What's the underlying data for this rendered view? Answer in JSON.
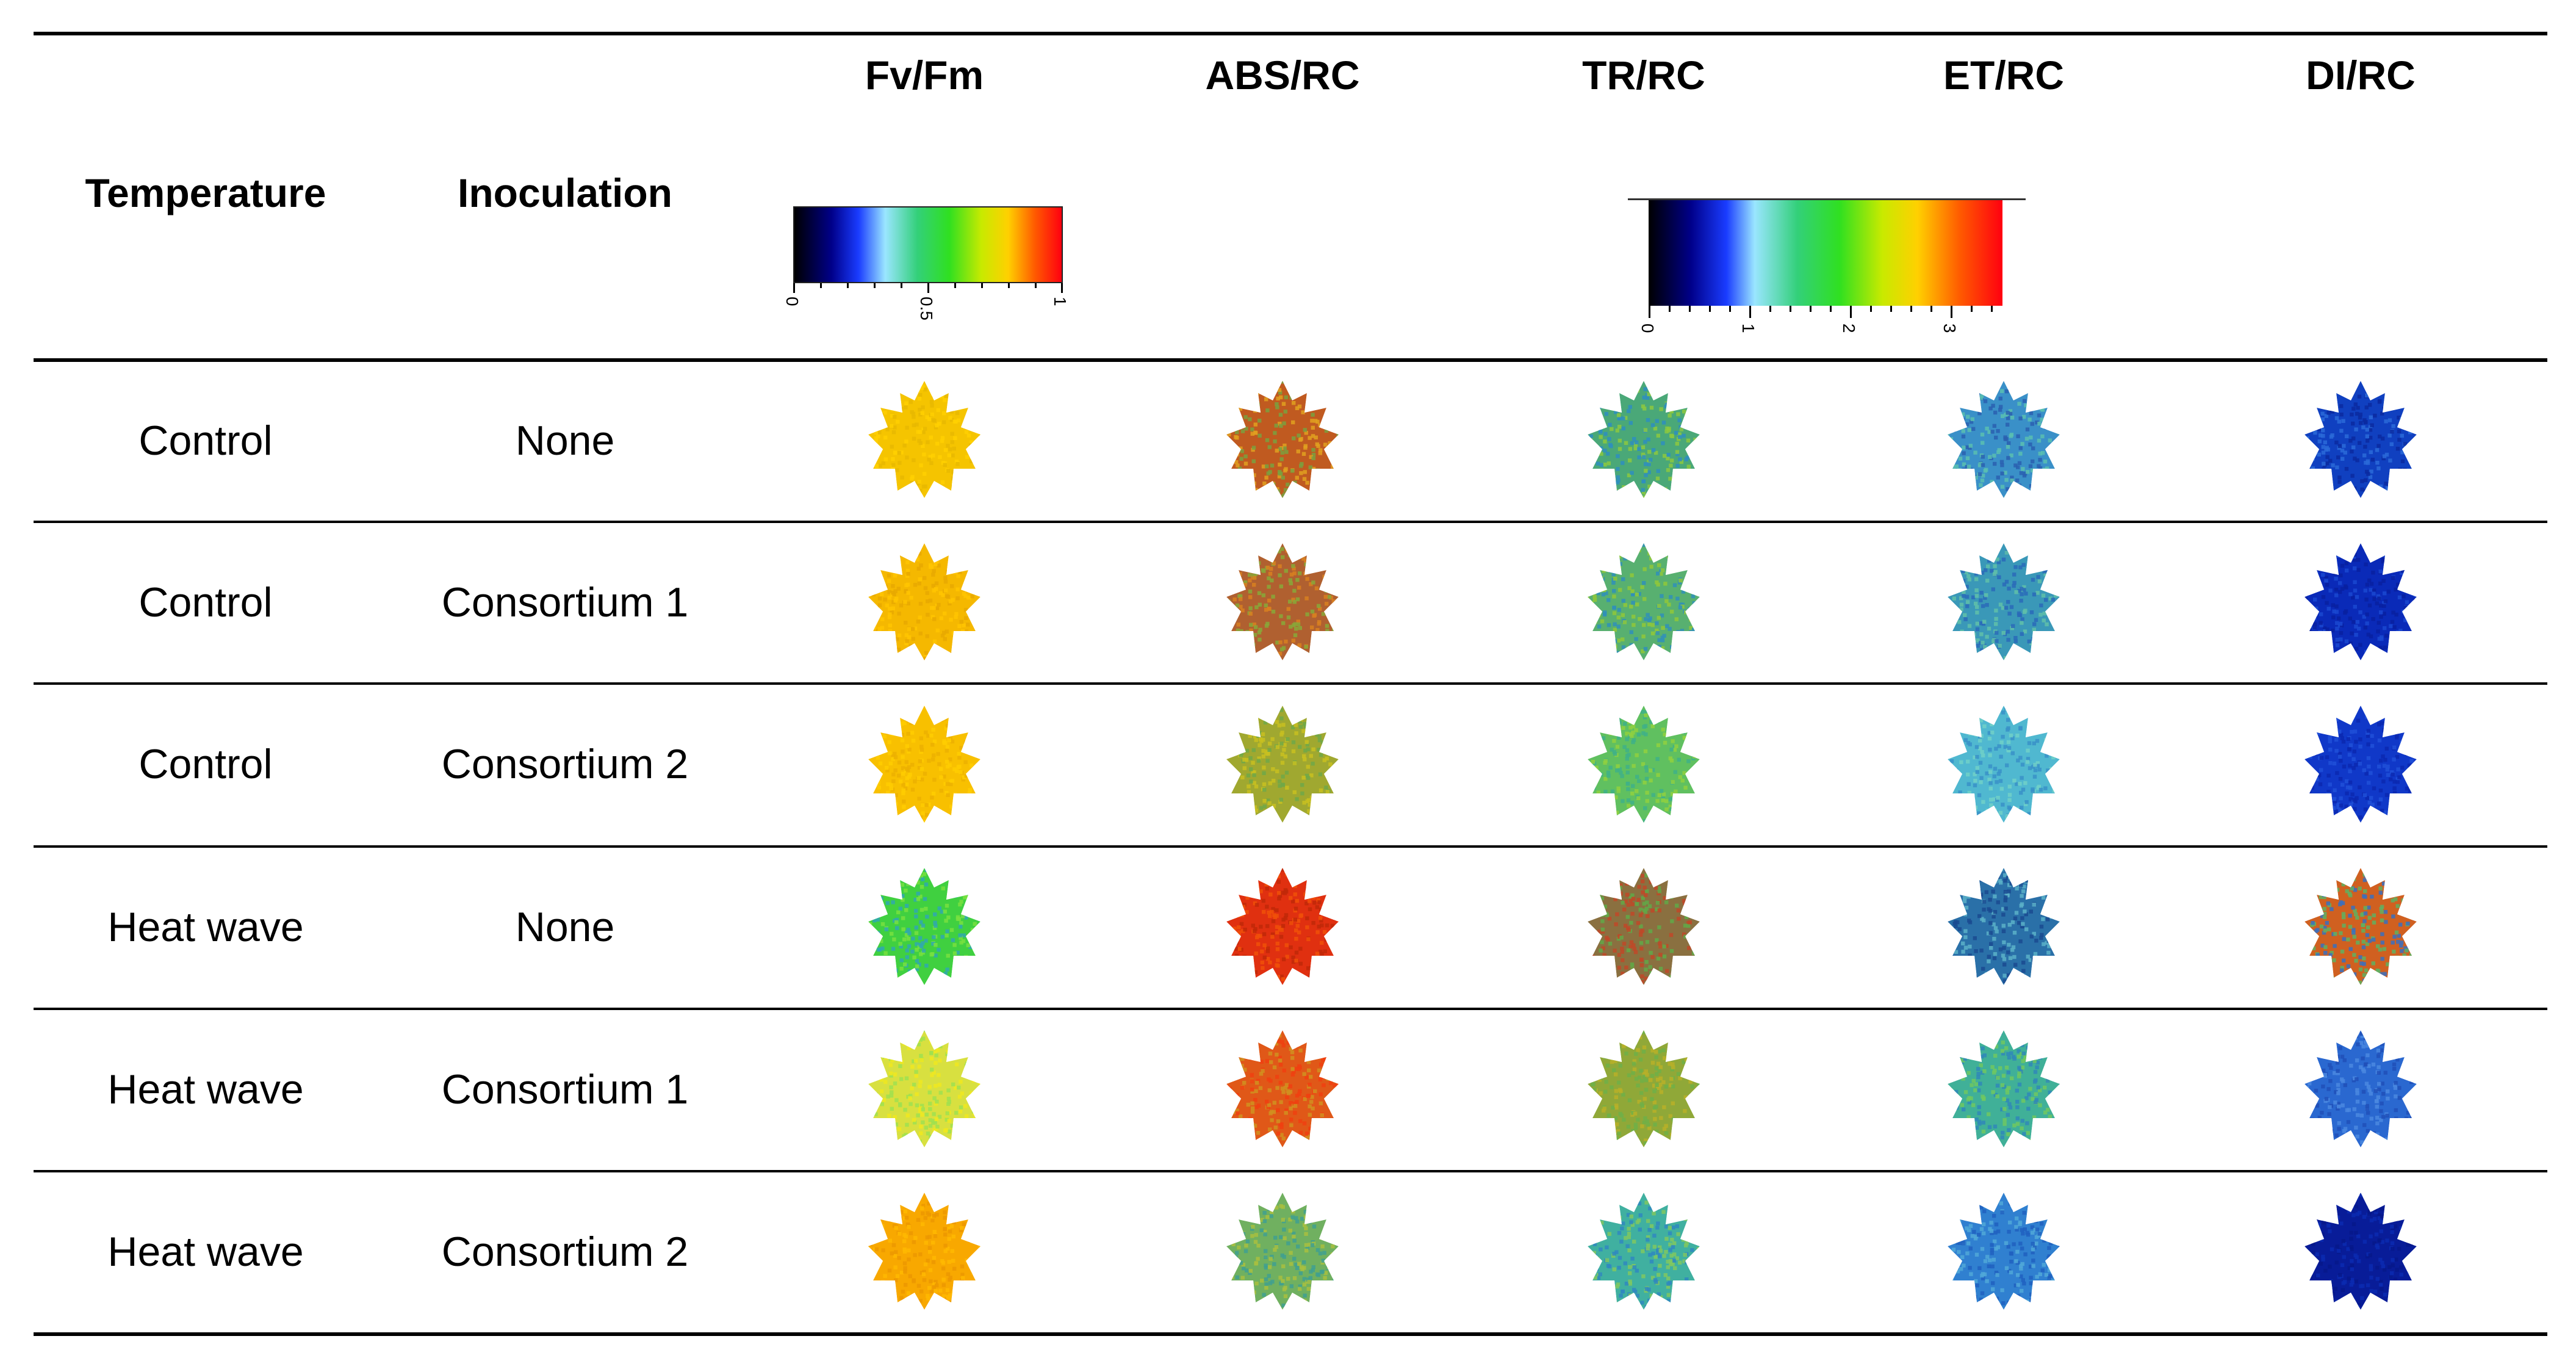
{
  "headers": {
    "temperature": "Temperature",
    "inoculation": "Inoculation",
    "params": [
      "Fv/Fm",
      "ABS/RC",
      "TR/RC",
      "ET/RC",
      "DI/RC"
    ]
  },
  "scale_fvfm": {
    "ticks": [
      "0",
      "0.5",
      "1"
    ]
  },
  "scale_rc": {
    "ticks": [
      "0",
      "1",
      "2",
      "3"
    ]
  },
  "rows": [
    {
      "temperature": "Control",
      "inoculation": "None",
      "leaf_colors": [
        [
          "#f5c400",
          "#ffd000",
          "#e8b800"
        ],
        [
          "#c05a20",
          "#7aa040",
          "#e0a020"
        ],
        [
          "#4aa878",
          "#8cc840",
          "#2e8ec0"
        ],
        [
          "#3a90c8",
          "#5ac0b0",
          "#2a60b0"
        ],
        [
          "#1040c0",
          "#0a2aa0",
          "#2a6ad8"
        ]
      ]
    },
    {
      "temperature": "Control",
      "inoculation": "Consortium 1",
      "leaf_colors": [
        [
          "#f5b800",
          "#ffc400",
          "#e8a800"
        ],
        [
          "#b06030",
          "#88a838",
          "#d88020"
        ],
        [
          "#58b070",
          "#90c838",
          "#3090b8"
        ],
        [
          "#3a98b8",
          "#60c0a8",
          "#2a6ab8"
        ],
        [
          "#0a2ab8",
          "#0820a0",
          "#1a48d0"
        ]
      ]
    },
    {
      "temperature": "Control",
      "inoculation": "Consortium 2",
      "leaf_colors": [
        [
          "#f8c000",
          "#ffcc00",
          "#ecb000"
        ],
        [
          "#a0a830",
          "#c8c020",
          "#70a848"
        ],
        [
          "#60c060",
          "#90d040",
          "#40b088"
        ],
        [
          "#50b8d0",
          "#70d0c8",
          "#3890c8"
        ],
        [
          "#1038c8",
          "#0a28b0",
          "#2050d8"
        ]
      ]
    },
    {
      "temperature": "Heat wave",
      "inoculation": "None",
      "leaf_colors": [
        [
          "#40d040",
          "#78e040",
          "#30a8b0"
        ],
        [
          "#e03010",
          "#f05008",
          "#c02808"
        ],
        [
          "#8a7040",
          "#60a848",
          "#c04828"
        ],
        [
          "#2a70a8",
          "#1a4a90",
          "#5ab0c8"
        ],
        [
          "#d06020",
          "#60b060",
          "#3a70c0"
        ]
      ]
    },
    {
      "temperature": "Heat wave",
      "inoculation": "Consortium 1",
      "leaf_colors": [
        [
          "#d8e040",
          "#f0e820",
          "#a0e050"
        ],
        [
          "#e05818",
          "#d09020",
          "#f04010"
        ],
        [
          "#90a838",
          "#b8b028",
          "#70b048"
        ],
        [
          "#40b098",
          "#70c860",
          "#3088b8"
        ],
        [
          "#2a68d0",
          "#4a88e0",
          "#2050b8"
        ]
      ]
    },
    {
      "temperature": "Heat wave",
      "inoculation": "Consortium 2",
      "leaf_colors": [
        [
          "#f8a800",
          "#ffb800",
          "#ec9800"
        ],
        [
          "#70b060",
          "#a8c040",
          "#40a090"
        ],
        [
          "#40b0a0",
          "#80c860",
          "#3088c0"
        ],
        [
          "#3080d0",
          "#50a8d8",
          "#2060c0"
        ],
        [
          "#081c98",
          "#0a2ab0",
          "#06188a"
        ]
      ]
    }
  ]
}
